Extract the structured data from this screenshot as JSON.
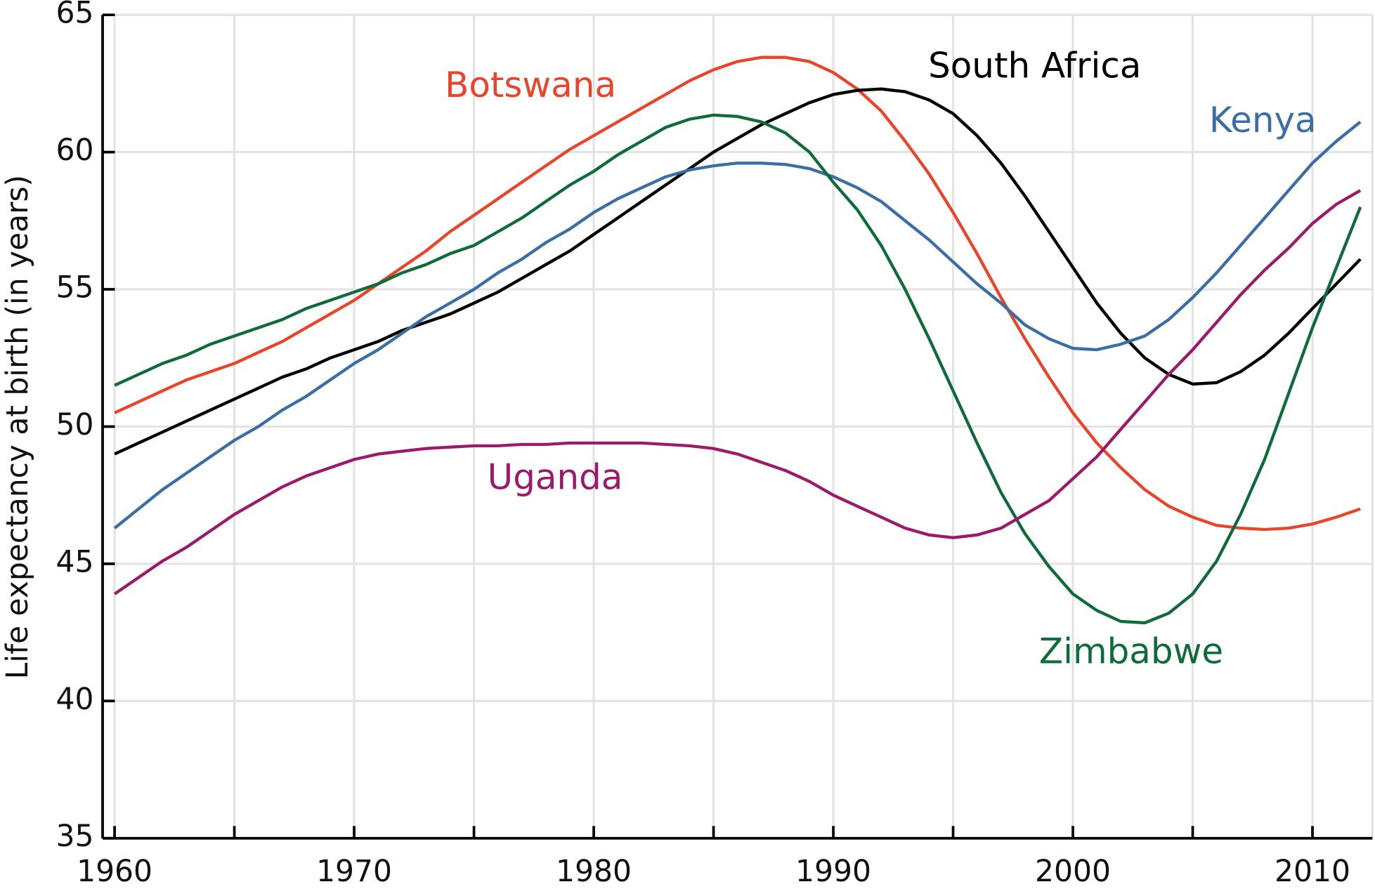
{
  "chart_data": {
    "type": "line",
    "y_label": "Life expectancy at birth (in years)",
    "x": [
      1960,
      1961,
      1962,
      1963,
      1964,
      1965,
      1966,
      1967,
      1968,
      1969,
      1970,
      1971,
      1972,
      1973,
      1974,
      1975,
      1976,
      1977,
      1978,
      1979,
      1980,
      1981,
      1982,
      1983,
      1984,
      1985,
      1986,
      1987,
      1988,
      1989,
      1990,
      1991,
      1992,
      1993,
      1994,
      1995,
      1996,
      1997,
      1998,
      1999,
      2000,
      2001,
      2002,
      2003,
      2004,
      2005,
      2006,
      2007,
      2008,
      2009,
      2010,
      2011,
      2012
    ],
    "series": [
      {
        "name": "Botswana",
        "color": "#e8452a",
        "values": [
          50.5,
          50.9,
          51.3,
          51.7,
          52.0,
          52.3,
          52.7,
          53.1,
          53.6,
          54.1,
          54.6,
          55.2,
          55.8,
          56.4,
          57.1,
          57.7,
          58.3,
          58.9,
          59.5,
          60.1,
          60.6,
          61.1,
          61.6,
          62.1,
          62.6,
          63.0,
          63.3,
          63.45,
          63.45,
          63.3,
          62.9,
          62.3,
          61.5,
          60.4,
          59.2,
          57.8,
          56.3,
          54.7,
          53.2,
          51.8,
          50.5,
          49.4,
          48.5,
          47.7,
          47.1,
          46.7,
          46.4,
          46.3,
          46.25,
          46.3,
          46.45,
          46.7,
          47.0
        ]
      },
      {
        "name": "South Africa",
        "color": "#000000",
        "values": [
          49.0,
          49.4,
          49.8,
          50.2,
          50.6,
          51.0,
          51.4,
          51.8,
          52.1,
          52.5,
          52.8,
          53.1,
          53.5,
          53.8,
          54.1,
          54.5,
          54.9,
          55.4,
          55.9,
          56.4,
          57.0,
          57.6,
          58.2,
          58.8,
          59.4,
          60.0,
          60.5,
          61.0,
          61.4,
          61.8,
          62.1,
          62.25,
          62.3,
          62.2,
          61.9,
          61.4,
          60.6,
          59.6,
          58.4,
          57.1,
          55.8,
          54.5,
          53.4,
          52.5,
          51.9,
          51.55,
          51.6,
          52.0,
          52.6,
          53.4,
          54.3,
          55.2,
          56.1
        ]
      },
      {
        "name": "Kenya",
        "color": "#3a6ea5",
        "values": [
          46.3,
          47.0,
          47.7,
          48.3,
          48.9,
          49.5,
          50.0,
          50.6,
          51.1,
          51.7,
          52.3,
          52.8,
          53.4,
          54.0,
          54.5,
          55.0,
          55.6,
          56.1,
          56.7,
          57.2,
          57.8,
          58.3,
          58.7,
          59.1,
          59.35,
          59.5,
          59.6,
          59.6,
          59.55,
          59.4,
          59.1,
          58.7,
          58.2,
          57.5,
          56.8,
          56.0,
          55.2,
          54.5,
          53.7,
          53.2,
          52.85,
          52.8,
          53.0,
          53.3,
          53.9,
          54.7,
          55.6,
          56.6,
          57.6,
          58.6,
          59.6,
          60.4,
          61.1
        ]
      },
      {
        "name": "Zimbabwe",
        "color": "#0f6b3a",
        "values": [
          51.5,
          51.9,
          52.3,
          52.6,
          53.0,
          53.3,
          53.6,
          53.9,
          54.3,
          54.6,
          54.9,
          55.2,
          55.6,
          55.9,
          56.3,
          56.6,
          57.1,
          57.6,
          58.2,
          58.8,
          59.3,
          59.9,
          60.4,
          60.9,
          61.2,
          61.35,
          61.3,
          61.1,
          60.7,
          60.0,
          58.9,
          57.9,
          56.6,
          55.0,
          53.2,
          51.3,
          49.4,
          47.6,
          46.1,
          44.9,
          43.9,
          43.3,
          42.9,
          42.85,
          43.2,
          43.9,
          45.1,
          46.8,
          48.8,
          51.2,
          53.6,
          55.8,
          58.0
        ]
      },
      {
        "name": "Uganda",
        "color": "#9b1b6a",
        "values": [
          43.9,
          44.5,
          45.1,
          45.6,
          46.2,
          46.8,
          47.3,
          47.8,
          48.2,
          48.5,
          48.8,
          49.0,
          49.1,
          49.2,
          49.25,
          49.3,
          49.3,
          49.35,
          49.35,
          49.4,
          49.4,
          49.4,
          49.4,
          49.35,
          49.3,
          49.2,
          49.0,
          48.7,
          48.4,
          48.0,
          47.5,
          47.1,
          46.7,
          46.3,
          46.05,
          45.95,
          46.05,
          46.3,
          46.8,
          47.3,
          48.1,
          48.9,
          49.9,
          50.9,
          51.9,
          52.8,
          53.8,
          54.8,
          55.7,
          56.5,
          57.4,
          58.1,
          58.6
        ]
      }
    ],
    "xlim": [
      1959.5,
      2012.5
    ],
    "xticks": [
      1960,
      1970,
      1980,
      1990,
      2000,
      2010
    ],
    "x_minor_ticks": [
      1965,
      1975,
      1985,
      1995,
      2005
    ],
    "ylim": [
      35,
      65
    ],
    "yticks": [
      35,
      40,
      45,
      50,
      55,
      60,
      65
    ],
    "grid": true
  }
}
